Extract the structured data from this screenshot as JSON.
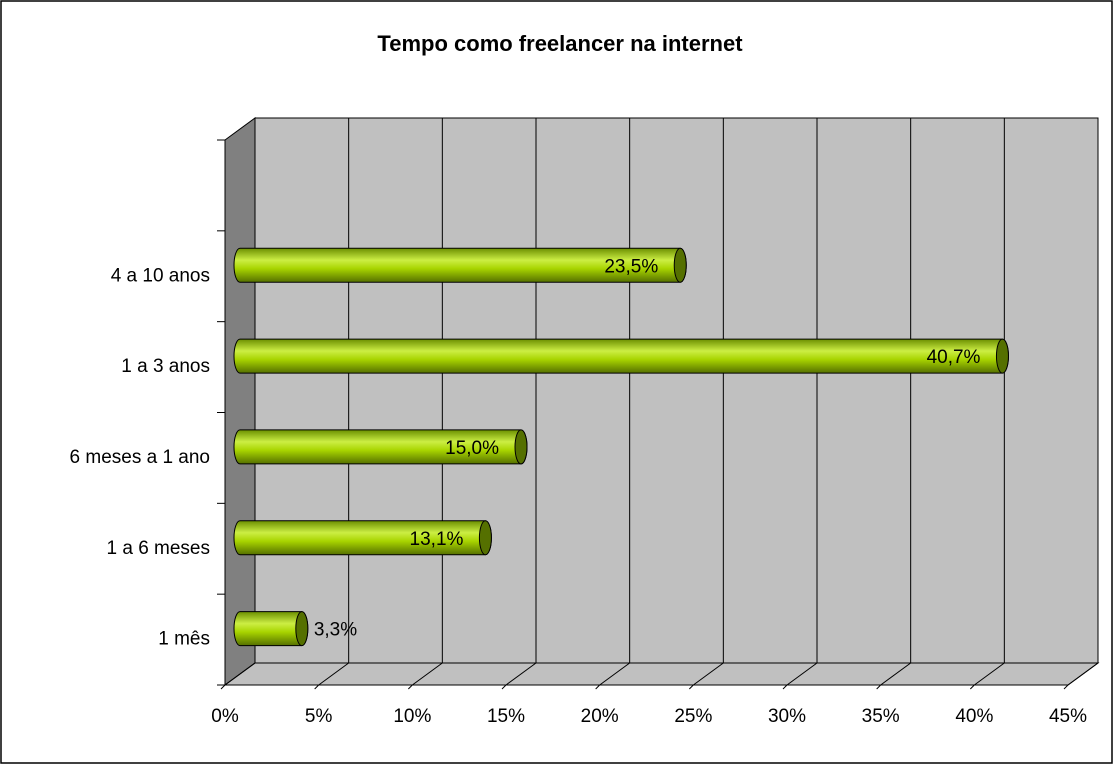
{
  "chart_data": {
    "type": "bar3d_horizontal",
    "title": "Tempo como freelancer  na internet",
    "categories": [
      "1 mês",
      "1 a 6 meses",
      "6 meses a 1 ano",
      "1 a 3 anos",
      "4 a 10 anos",
      null
    ],
    "values": [
      3.3,
      13.1,
      15.0,
      40.7,
      23.5,
      null
    ],
    "value_labels": [
      "3,3%",
      "13,1%",
      "15,0%",
      "40,7%",
      "23,5%",
      null
    ],
    "color": "#99cc00",
    "xlim": [
      0,
      45
    ],
    "xticks": [
      {
        "value": 0,
        "label": "0%"
      },
      {
        "value": 5,
        "label": "5%"
      },
      {
        "value": 10,
        "label": "10%"
      },
      {
        "value": 15,
        "label": "15%"
      },
      {
        "value": 20,
        "label": "20%"
      },
      {
        "value": 25,
        "label": "25%"
      },
      {
        "value": 30,
        "label": "30%"
      },
      {
        "value": 35,
        "label": "35%"
      },
      {
        "value": 40,
        "label": "40%"
      },
      {
        "value": 45,
        "label": "45%"
      }
    ],
    "grid": true
  }
}
